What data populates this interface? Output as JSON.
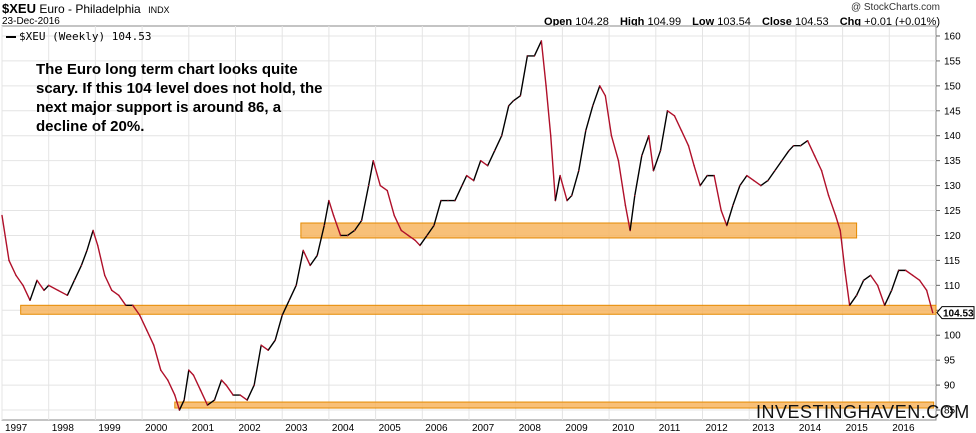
{
  "header": {
    "symbol": "$XEU",
    "description": "Euro - Philadelphia",
    "exchange": "INDX",
    "date": "23-Dec-2016",
    "credit": "@ StockCharts.com",
    "ohlc": {
      "open_label": "Open",
      "open": "104.28",
      "high_label": "High",
      "high": "104.99",
      "low_label": "Low",
      "low": "103.54",
      "close_label": "Close",
      "close": "104.53",
      "chg_label": "Chg",
      "chg": "+0.01 (+0.01%)"
    }
  },
  "legend": {
    "label": "$XEU (Weekly) 104.53"
  },
  "annotation": "The Euro long term chart looks quite scary. If this 104 level does not hold, the next major support is around 86, a decline of 20%.",
  "brand": "INVESTINGHAVEN.COM",
  "price_tag": "104.53",
  "colors": {
    "up": "#000000",
    "down": "#b0102a",
    "band_fill": "#f7b560",
    "band_stroke": "#e58a00",
    "grid": "#e4e4e4"
  },
  "chart_data": {
    "type": "line",
    "x_labels": [
      "1997",
      "1998",
      "1999",
      "2000",
      "2001",
      "2002",
      "2003",
      "2004",
      "2005",
      "2006",
      "2007",
      "2008",
      "2009",
      "2010",
      "2011",
      "2012",
      "2013",
      "2014",
      "2015",
      "2016"
    ],
    "xlim": [
      1997.0,
      2017.0
    ],
    "y_ticks": [
      85,
      90,
      95,
      100,
      105,
      110,
      115,
      120,
      125,
      130,
      135,
      140,
      145,
      150,
      155,
      160
    ],
    "ylim": [
      83,
      162
    ],
    "y_axis_side": "right",
    "series": [
      {
        "values": [
          [
            1997.0,
            124
          ],
          [
            1997.15,
            115
          ],
          [
            1997.3,
            112
          ],
          [
            1997.45,
            110
          ],
          [
            1997.6,
            107
          ],
          [
            1997.75,
            111
          ],
          [
            1997.9,
            109
          ],
          [
            1998.0,
            110
          ],
          [
            1998.2,
            109
          ],
          [
            1998.4,
            108
          ],
          [
            1998.55,
            111
          ],
          [
            1998.7,
            114
          ],
          [
            1998.82,
            117
          ],
          [
            1998.95,
            121
          ],
          [
            1999.05,
            118
          ],
          [
            1999.2,
            112
          ],
          [
            1999.35,
            109
          ],
          [
            1999.5,
            108
          ],
          [
            1999.65,
            106
          ],
          [
            1999.8,
            106
          ],
          [
            1999.95,
            104
          ],
          [
            2000.1,
            101
          ],
          [
            2000.25,
            98
          ],
          [
            2000.4,
            93
          ],
          [
            2000.55,
            91
          ],
          [
            2000.7,
            88
          ],
          [
            2000.8,
            85
          ],
          [
            2000.9,
            87
          ],
          [
            2001.0,
            93
          ],
          [
            2001.1,
            92
          ],
          [
            2001.25,
            89
          ],
          [
            2001.4,
            86
          ],
          [
            2001.55,
            87
          ],
          [
            2001.7,
            91
          ],
          [
            2001.8,
            90
          ],
          [
            2001.95,
            88
          ],
          [
            2002.1,
            88
          ],
          [
            2002.25,
            87
          ],
          [
            2002.4,
            90
          ],
          [
            2002.55,
            98
          ],
          [
            2002.7,
            97
          ],
          [
            2002.85,
            99
          ],
          [
            2003.0,
            104
          ],
          [
            2003.15,
            107
          ],
          [
            2003.3,
            110
          ],
          [
            2003.45,
            117
          ],
          [
            2003.6,
            114
          ],
          [
            2003.75,
            116
          ],
          [
            2003.9,
            122
          ],
          [
            2004.0,
            127
          ],
          [
            2004.1,
            124
          ],
          [
            2004.25,
            120
          ],
          [
            2004.4,
            120
          ],
          [
            2004.55,
            121
          ],
          [
            2004.7,
            123
          ],
          [
            2004.85,
            130
          ],
          [
            2004.95,
            135
          ],
          [
            2005.1,
            130
          ],
          [
            2005.25,
            129
          ],
          [
            2005.4,
            124
          ],
          [
            2005.55,
            121
          ],
          [
            2005.7,
            120
          ],
          [
            2005.85,
            119
          ],
          [
            2005.95,
            118
          ],
          [
            2006.1,
            120
          ],
          [
            2006.25,
            122
          ],
          [
            2006.4,
            127
          ],
          [
            2006.55,
            127
          ],
          [
            2006.7,
            127
          ],
          [
            2006.85,
            130
          ],
          [
            2006.95,
            132
          ],
          [
            2007.1,
            131
          ],
          [
            2007.25,
            135
          ],
          [
            2007.4,
            134
          ],
          [
            2007.55,
            137
          ],
          [
            2007.7,
            140
          ],
          [
            2007.85,
            146
          ],
          [
            2007.95,
            147
          ],
          [
            2008.1,
            148
          ],
          [
            2008.25,
            156
          ],
          [
            2008.4,
            156
          ],
          [
            2008.55,
            159
          ],
          [
            2008.65,
            150
          ],
          [
            2008.75,
            140
          ],
          [
            2008.85,
            127
          ],
          [
            2008.95,
            132
          ],
          [
            2009.1,
            127
          ],
          [
            2009.2,
            128
          ],
          [
            2009.35,
            133
          ],
          [
            2009.5,
            141
          ],
          [
            2009.65,
            146
          ],
          [
            2009.8,
            150
          ],
          [
            2009.92,
            148
          ],
          [
            2010.05,
            140
          ],
          [
            2010.2,
            135
          ],
          [
            2010.35,
            126
          ],
          [
            2010.45,
            121
          ],
          [
            2010.55,
            128
          ],
          [
            2010.7,
            136
          ],
          [
            2010.85,
            140
          ],
          [
            2010.95,
            133
          ],
          [
            2011.1,
            137
          ],
          [
            2011.25,
            145
          ],
          [
            2011.4,
            144
          ],
          [
            2011.55,
            141
          ],
          [
            2011.7,
            138
          ],
          [
            2011.82,
            134
          ],
          [
            2011.95,
            130
          ],
          [
            2012.1,
            132
          ],
          [
            2012.25,
            132
          ],
          [
            2012.4,
            125
          ],
          [
            2012.52,
            122
          ],
          [
            2012.65,
            126
          ],
          [
            2012.8,
            130
          ],
          [
            2012.95,
            132
          ],
          [
            2013.1,
            131
          ],
          [
            2013.25,
            130
          ],
          [
            2013.4,
            131
          ],
          [
            2013.55,
            133
          ],
          [
            2013.7,
            135
          ],
          [
            2013.85,
            137
          ],
          [
            2013.95,
            138
          ],
          [
            2014.1,
            138
          ],
          [
            2014.25,
            139
          ],
          [
            2014.4,
            136
          ],
          [
            2014.55,
            133
          ],
          [
            2014.7,
            128
          ],
          [
            2014.85,
            124
          ],
          [
            2014.95,
            121
          ],
          [
            2015.05,
            113
          ],
          [
            2015.15,
            106
          ],
          [
            2015.3,
            108
          ],
          [
            2015.45,
            111
          ],
          [
            2015.6,
            112
          ],
          [
            2015.75,
            110
          ],
          [
            2015.9,
            106
          ],
          [
            2016.05,
            109
          ],
          [
            2016.2,
            113
          ],
          [
            2016.35,
            113
          ],
          [
            2016.5,
            112
          ],
          [
            2016.65,
            111
          ],
          [
            2016.8,
            109
          ],
          [
            2016.93,
            104.53
          ]
        ]
      }
    ],
    "bands": [
      {
        "low": 119.5,
        "high": 122.5,
        "x_from": 2003.4,
        "x_to": 2015.3
      },
      {
        "low": 104.2,
        "high": 106.0,
        "x_from": 1997.4,
        "x_to": 2017.0
      },
      {
        "low": 85.4,
        "high": 86.6,
        "x_from": 2000.7,
        "x_to": 2016.95
      }
    ]
  }
}
